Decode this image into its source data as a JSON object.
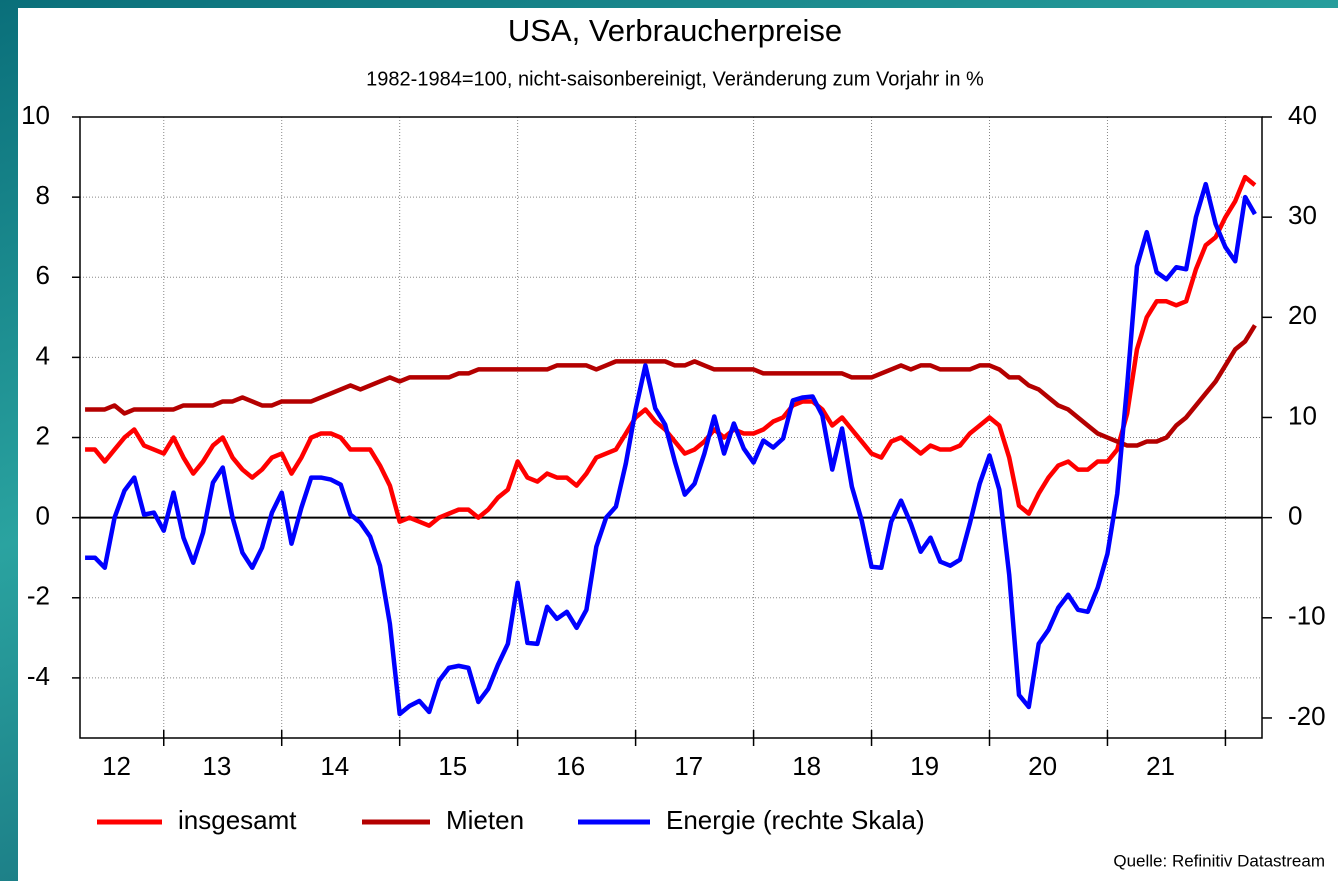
{
  "chart_data": {
    "type": "line",
    "title": "USA, Verbraucherpreise",
    "subtitle": "1982-1984=100, nicht-saisonbereinigt, Veränderung zum Vorjahr in %",
    "source": "Quelle: Refinitiv Datastream",
    "x": [
      12.333,
      12.417,
      12.5,
      12.583,
      12.667,
      12.75,
      12.833,
      12.917,
      13,
      13.083,
      13.167,
      13.25,
      13.333,
      13.417,
      13.5,
      13.583,
      13.667,
      13.75,
      13.833,
      13.917,
      14,
      14.083,
      14.167,
      14.25,
      14.333,
      14.417,
      14.5,
      14.583,
      14.667,
      14.75,
      14.833,
      14.917,
      15,
      15.083,
      15.167,
      15.25,
      15.333,
      15.417,
      15.5,
      15.583,
      15.667,
      15.75,
      15.833,
      15.917,
      16,
      16.083,
      16.167,
      16.25,
      16.333,
      16.417,
      16.5,
      16.583,
      16.667,
      16.75,
      16.833,
      16.917,
      17,
      17.083,
      17.167,
      17.25,
      17.333,
      17.417,
      17.5,
      17.583,
      17.667,
      17.75,
      17.833,
      17.917,
      18,
      18.083,
      18.167,
      18.25,
      18.333,
      18.417,
      18.5,
      18.583,
      18.667,
      18.75,
      18.833,
      18.917,
      19,
      19.083,
      19.167,
      19.25,
      19.333,
      19.417,
      19.5,
      19.583,
      19.667,
      19.75,
      19.833,
      19.917,
      20,
      20.083,
      20.167,
      20.25,
      20.333,
      20.417,
      20.5,
      20.583,
      20.667,
      20.75,
      20.833,
      20.917,
      21,
      21.083,
      21.167,
      21.25,
      21.333,
      21.417,
      21.5,
      21.583,
      21.667,
      21.75,
      21.833,
      21.917,
      22,
      22.083,
      22.167,
      22.25
    ],
    "series": [
      {
        "name": "insgesamt",
        "color": "#ff0000",
        "values": [
          1.7,
          1.7,
          1.4,
          1.7,
          2.0,
          2.2,
          1.8,
          1.7,
          1.6,
          2.0,
          1.5,
          1.1,
          1.4,
          1.8,
          2.0,
          1.5,
          1.2,
          1.0,
          1.2,
          1.5,
          1.6,
          1.1,
          1.5,
          2.0,
          2.1,
          2.1,
          2.0,
          1.7,
          1.7,
          1.7,
          1.3,
          0.8,
          -0.1,
          0.0,
          -0.1,
          -0.2,
          0.0,
          0.1,
          0.2,
          0.2,
          0.0,
          0.2,
          0.5,
          0.7,
          1.4,
          1.0,
          0.9,
          1.1,
          1.0,
          1.0,
          0.8,
          1.1,
          1.5,
          1.6,
          1.7,
          2.1,
          2.5,
          2.7,
          2.4,
          2.2,
          1.9,
          1.6,
          1.7,
          1.9,
          2.2,
          2.0,
          2.2,
          2.1,
          2.1,
          2.2,
          2.4,
          2.5,
          2.8,
          2.9,
          2.9,
          2.7,
          2.3,
          2.5,
          2.2,
          1.9,
          1.6,
          1.5,
          1.9,
          2.0,
          1.8,
          1.6,
          1.8,
          1.7,
          1.7,
          1.8,
          2.1,
          2.3,
          2.5,
          2.3,
          1.5,
          0.3,
          0.1,
          0.6,
          1.0,
          1.3,
          1.4,
          1.2,
          1.2,
          1.4,
          1.4,
          1.7,
          2.6,
          4.2,
          5.0,
          5.4,
          5.4,
          5.3,
          5.4,
          6.2,
          6.8,
          7.0,
          7.5,
          7.9,
          8.5,
          8.3
        ]
      },
      {
        "name": "Mieten",
        "color": "#b40000",
        "values": [
          2.7,
          2.7,
          2.7,
          2.8,
          2.6,
          2.7,
          2.7,
          2.7,
          2.7,
          2.7,
          2.8,
          2.8,
          2.8,
          2.8,
          2.9,
          2.9,
          3.0,
          2.9,
          2.8,
          2.8,
          2.9,
          2.9,
          2.9,
          2.9,
          3.0,
          3.1,
          3.2,
          3.3,
          3.2,
          3.3,
          3.4,
          3.5,
          3.4,
          3.5,
          3.5,
          3.5,
          3.5,
          3.5,
          3.6,
          3.6,
          3.7,
          3.7,
          3.7,
          3.7,
          3.7,
          3.7,
          3.7,
          3.7,
          3.8,
          3.8,
          3.8,
          3.8,
          3.7,
          3.8,
          3.9,
          3.9,
          3.9,
          3.9,
          3.9,
          3.9,
          3.8,
          3.8,
          3.9,
          3.8,
          3.7,
          3.7,
          3.7,
          3.7,
          3.7,
          3.6,
          3.6,
          3.6,
          3.6,
          3.6,
          3.6,
          3.6,
          3.6,
          3.6,
          3.5,
          3.5,
          3.5,
          3.6,
          3.7,
          3.8,
          3.7,
          3.8,
          3.8,
          3.7,
          3.7,
          3.7,
          3.7,
          3.8,
          3.8,
          3.7,
          3.5,
          3.5,
          3.3,
          3.2,
          3.0,
          2.8,
          2.7,
          2.5,
          2.3,
          2.1,
          2.0,
          1.9,
          1.8,
          1.8,
          1.9,
          1.9,
          2.0,
          2.3,
          2.5,
          2.8,
          3.1,
          3.4,
          3.8,
          4.2,
          4.4,
          4.8
        ]
      },
      {
        "name": "Energie (rechte Skala)",
        "color": "#0000ff",
        "axis": "y2",
        "values": [
          -4,
          -4,
          -5,
          0,
          2.7,
          4,
          0.3,
          0.5,
          -1.3,
          2.5,
          -2,
          -4.5,
          -1.5,
          3.5,
          5,
          0,
          -3.5,
          -5,
          -3,
          0.5,
          2.5,
          -2.6,
          1.0,
          4.0,
          4.0,
          3.8,
          3.3,
          0.3,
          -0.5,
          -1.9,
          -4.8,
          -10.6,
          -19.6,
          -18.8,
          -18.3,
          -19.4,
          -16.3,
          -15.0,
          -14.8,
          -15.0,
          -18.4,
          -17.1,
          -14.7,
          -12.6,
          -6.5,
          -12.5,
          -12.6,
          -8.9,
          -10.1,
          -9.4,
          -11.0,
          -9.2,
          -2.9,
          0.0,
          1.1,
          5.4,
          10.8,
          15.2,
          10.9,
          9.3,
          5.6,
          2.3,
          3.4,
          6.4,
          10.1,
          6.4,
          9.4,
          6.9,
          5.5,
          7.7,
          7.0,
          7.9,
          11.7,
          12.0,
          12.1,
          10.2,
          4.8,
          8.9,
          3.1,
          -0.3,
          -4.9,
          -5.0,
          -0.4,
          1.7,
          -0.6,
          -3.4,
          -2.0,
          -4.4,
          -4.8,
          -4.2,
          -0.6,
          3.4,
          6.2,
          2.8,
          -5.7,
          -17.7,
          -18.9,
          -12.6,
          -11.2,
          -9.0,
          -7.7,
          -9.2,
          -9.4,
          -7.0,
          -3.6,
          2.4,
          13.2,
          25.1,
          28.5,
          24.5,
          23.8,
          25.0,
          24.8,
          30.0,
          33.3,
          29.3,
          27.0,
          25.6,
          32.0,
          30.3
        ]
      }
    ],
    "xlim": [
      12.29,
      22.31
    ],
    "xticks": [
      13,
      14,
      15,
      16,
      17,
      18,
      19,
      20,
      21,
      22
    ],
    "xtick_labels": [
      {
        "value": 12.6,
        "label": "12"
      },
      {
        "value": 13.45,
        "label": "13"
      },
      {
        "value": 14.45,
        "label": "14"
      },
      {
        "value": 15.45,
        "label": "15"
      },
      {
        "value": 16.45,
        "label": "16"
      },
      {
        "value": 17.45,
        "label": "17"
      },
      {
        "value": 18.45,
        "label": "18"
      },
      {
        "value": 19.45,
        "label": "19"
      },
      {
        "value": 20.45,
        "label": "20"
      },
      {
        "value": 21.45,
        "label": "21"
      }
    ],
    "ylim": [
      -5.5,
      10
    ],
    "yticks": [
      -4,
      -2,
      0,
      2,
      4,
      6,
      8,
      10
    ],
    "y2lim": [
      -22,
      40
    ],
    "y2ticks": [
      -20,
      -10,
      0,
      10,
      20,
      30,
      40
    ],
    "grid": true,
    "legend": "bottom"
  }
}
